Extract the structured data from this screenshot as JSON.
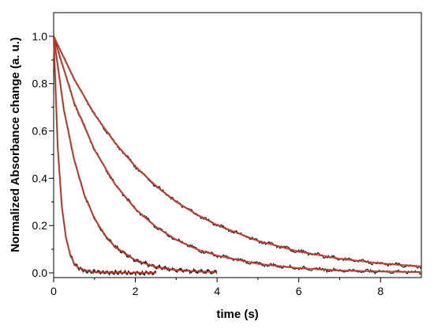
{
  "chart_data": {
    "type": "line",
    "title": "",
    "xlabel": "time (s)",
    "ylabel": "Normalized Absorbance change (a. u.)",
    "xlim": [
      0,
      9
    ],
    "ylim": [
      -0.02,
      1.1
    ],
    "x_ticks": [
      0,
      2,
      4,
      6,
      8
    ],
    "x_tick_labels": [
      "0",
      "2",
      "4",
      "6",
      "8"
    ],
    "y_ticks": [
      0.0,
      0.2,
      0.4,
      0.6,
      0.8,
      1.0
    ],
    "y_tick_labels": [
      "0.0",
      "0.2",
      "0.4",
      "0.6",
      "0.8",
      "1.0"
    ],
    "grid": false,
    "legend": "none",
    "data_color": "#111111",
    "fit_color": "#c0392b",
    "series": [
      {
        "x": [
          0,
          0.1,
          0.2,
          0.3,
          0.4,
          0.5,
          0.6,
          0.8,
          1.0,
          1.5,
          2.0,
          2.5
        ],
        "y": [
          1.0,
          0.53,
          0.28,
          0.15,
          0.08,
          0.04,
          0.022,
          0.008,
          0.003,
          0.001,
          0.0,
          0.0
        ]
      },
      {
        "x": [
          0,
          0.25,
          0.5,
          0.75,
          1.0,
          1.25,
          1.5,
          2.0,
          2.5,
          3.0,
          3.5,
          4.0
        ],
        "y": [
          1.0,
          0.69,
          0.48,
          0.33,
          0.23,
          0.16,
          0.11,
          0.053,
          0.025,
          0.012,
          0.006,
          0.003
        ]
      },
      {
        "x": [
          0,
          0.5,
          1.0,
          1.5,
          2.0,
          2.5,
          3.0,
          3.5,
          4.0,
          5.0,
          6.0,
          7.0,
          8.0,
          9.0
        ],
        "y": [
          1.0,
          0.72,
          0.52,
          0.375,
          0.27,
          0.195,
          0.14,
          0.1,
          0.073,
          0.038,
          0.02,
          0.01,
          0.006,
          0.003
        ]
      },
      {
        "x": [
          0,
          0.5,
          1.0,
          1.5,
          2.0,
          2.5,
          3.0,
          3.5,
          4.0,
          5.0,
          6.0,
          7.0,
          8.0,
          9.0
        ],
        "y": [
          1.0,
          0.82,
          0.67,
          0.55,
          0.45,
          0.368,
          0.3,
          0.247,
          0.202,
          0.135,
          0.09,
          0.06,
          0.04,
          0.027
        ]
      }
    ]
  }
}
